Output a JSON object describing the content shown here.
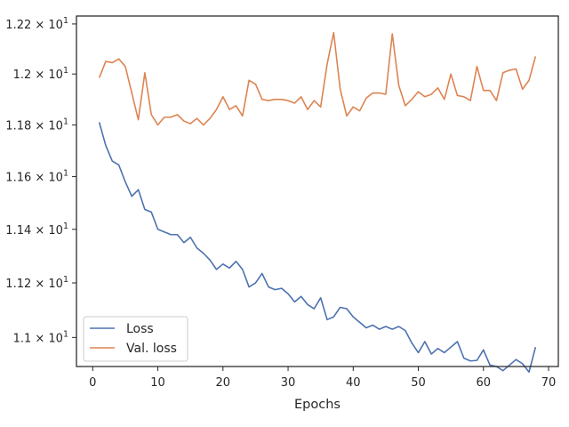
{
  "chart_data": {
    "type": "line",
    "title": "",
    "xlabel": "Epochs",
    "ylabel": "",
    "xlim": [
      -2.5,
      71.5
    ],
    "ylim": [
      10.895,
      12.232
    ],
    "y_scale": "log",
    "grid": false,
    "legend_position": "lower-left",
    "x_ticks": [
      0,
      10,
      20,
      30,
      40,
      50,
      60,
      70
    ],
    "x_tick_labels": [
      "0",
      "10",
      "20",
      "30",
      "40",
      "50",
      "60",
      "70"
    ],
    "y_ticks": [
      11.0,
      11.2,
      11.4,
      11.6,
      11.8,
      12.0,
      12.2
    ],
    "y_tick_labels": [
      [
        "1.1",
        "× 10",
        "1"
      ],
      [
        "1.12",
        "× 10",
        "1"
      ],
      [
        "1.14",
        "× 10",
        "1"
      ],
      [
        "1.16",
        "× 10",
        "1"
      ],
      [
        "1.18",
        "× 10",
        "1"
      ],
      [
        "1.2",
        "× 10",
        "1"
      ],
      [
        "1.22",
        "× 10",
        "1"
      ]
    ],
    "x": [
      1,
      2,
      3,
      4,
      5,
      6,
      7,
      8,
      9,
      10,
      11,
      12,
      13,
      14,
      15,
      16,
      17,
      18,
      19,
      20,
      21,
      22,
      23,
      24,
      25,
      26,
      27,
      28,
      29,
      30,
      31,
      32,
      33,
      34,
      35,
      36,
      37,
      38,
      39,
      40,
      41,
      42,
      43,
      44,
      45,
      46,
      47,
      48,
      49,
      50,
      51,
      52,
      53,
      54,
      55,
      56,
      57,
      58,
      59,
      60,
      61,
      62,
      63,
      64,
      65,
      66,
      67,
      68
    ],
    "series": [
      {
        "name": "Loss",
        "color": "#4c72b0",
        "values": [
          11.81,
          11.72,
          11.66,
          11.645,
          11.58,
          11.525,
          11.55,
          11.475,
          11.465,
          11.4,
          11.39,
          11.38,
          11.38,
          11.35,
          11.37,
          11.33,
          11.31,
          11.285,
          11.25,
          11.27,
          11.255,
          11.28,
          11.25,
          11.185,
          11.2,
          11.235,
          11.185,
          11.175,
          11.18,
          11.16,
          11.13,
          11.15,
          11.12,
          11.105,
          11.145,
          11.065,
          11.075,
          11.11,
          11.105,
          11.075,
          11.055,
          11.035,
          11.045,
          11.03,
          11.04,
          11.03,
          11.04,
          11.025,
          10.98,
          10.945,
          10.985,
          10.94,
          10.96,
          10.945,
          10.965,
          10.985,
          10.925,
          10.915,
          10.917,
          10.955,
          10.9,
          10.895,
          10.88,
          10.9,
          10.92,
          10.905,
          10.875,
          10.965
        ]
      },
      {
        "name": "Val. loss",
        "color": "#dd8452",
        "values": [
          11.985,
          12.05,
          12.045,
          12.06,
          12.03,
          11.925,
          11.82,
          12.005,
          11.84,
          11.8,
          11.83,
          11.83,
          11.84,
          11.815,
          11.805,
          11.825,
          11.8,
          11.825,
          11.86,
          11.91,
          11.86,
          11.875,
          11.835,
          11.975,
          11.96,
          11.9,
          11.895,
          11.9,
          11.9,
          11.895,
          11.885,
          11.91,
          11.86,
          11.895,
          11.87,
          12.04,
          12.165,
          11.94,
          11.835,
          11.87,
          11.855,
          11.905,
          11.925,
          11.925,
          11.92,
          12.16,
          11.955,
          11.875,
          11.9,
          11.93,
          11.91,
          11.92,
          11.945,
          11.9,
          12.0,
          11.915,
          11.91,
          11.895,
          12.03,
          11.935,
          11.935,
          11.895,
          12.005,
          12.015,
          12.02,
          11.94,
          11.975,
          12.07
        ]
      }
    ]
  }
}
